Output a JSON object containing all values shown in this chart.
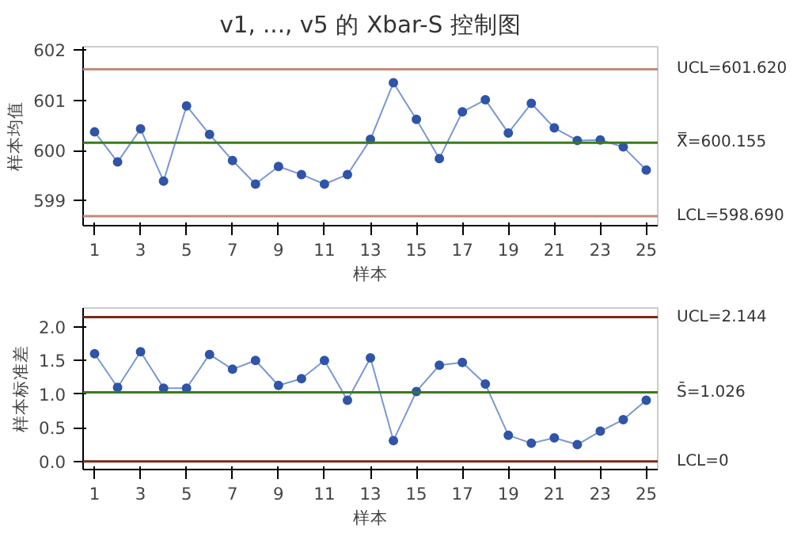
{
  "chart_data": [
    {
      "type": "line",
      "title": "v1, ..., v5 的 Xbar-S 控制图",
      "xlabel": "样本",
      "ylabel": "样本均值",
      "x": [
        1,
        2,
        3,
        4,
        5,
        6,
        7,
        8,
        9,
        10,
        11,
        12,
        13,
        14,
        15,
        16,
        17,
        18,
        19,
        20,
        21,
        22,
        23,
        24,
        25
      ],
      "series": [
        {
          "color": "#2f54a8",
          "values": [
            600.37,
            599.77,
            600.43,
            599.39,
            600.89,
            600.32,
            599.8,
            599.33,
            599.68,
            599.52,
            599.33,
            599.52,
            600.22,
            601.35,
            600.62,
            599.84,
            600.77,
            601.01,
            600.35,
            600.94,
            600.45,
            600.2,
            600.21,
            600.07,
            599.61
          ]
        }
      ],
      "xlim": [
        0.5,
        25.5
      ],
      "xticks": [
        1,
        3,
        5,
        7,
        9,
        11,
        13,
        15,
        17,
        19,
        21,
        23,
        25
      ],
      "ylim": [
        598.5,
        602.07
      ],
      "yticks": [
        599,
        600,
        601,
        602
      ],
      "marker": "circle",
      "line_style": "solid",
      "grid": false,
      "ref_lines": [
        {
          "axis": "y",
          "value": 601.62,
          "label": "UCL=601.620",
          "color": "#c48a78"
        },
        {
          "axis": "y",
          "value": 600.155,
          "label": "X̿=600.155",
          "color": "#3a7a1e"
        },
        {
          "axis": "y",
          "value": 598.69,
          "label": "LCL=598.690",
          "color": "#c48a78"
        }
      ]
    },
    {
      "type": "line",
      "xlabel": "样本",
      "ylabel": "样本标准差",
      "x": [
        1,
        2,
        3,
        4,
        5,
        6,
        7,
        8,
        9,
        10,
        11,
        12,
        13,
        14,
        15,
        16,
        17,
        18,
        19,
        20,
        21,
        22,
        23,
        24,
        25
      ],
      "series": [
        {
          "color": "#2f54a8",
          "values": [
            1.6,
            1.1,
            1.63,
            1.09,
            1.09,
            1.59,
            1.37,
            1.5,
            1.13,
            1.23,
            1.5,
            0.91,
            1.54,
            0.31,
            1.04,
            1.43,
            1.47,
            1.15,
            0.39,
            0.27,
            0.35,
            0.25,
            0.45,
            0.62,
            0.91
          ]
        }
      ],
      "xlim": [
        0.5,
        25.5
      ],
      "xticks": [
        1,
        3,
        5,
        7,
        9,
        11,
        13,
        15,
        17,
        19,
        21,
        23,
        25
      ],
      "ylim": [
        -0.12,
        2.28
      ],
      "yticks": [
        {
          "value": 0,
          "label": "0.0"
        },
        {
          "value": 0.5,
          "label": "0.5"
        },
        {
          "value": 1,
          "label": "1.0"
        },
        {
          "value": 1.5,
          "label": "1.5"
        },
        {
          "value": 2,
          "label": "2.0"
        }
      ],
      "marker": "circle",
      "line_style": "solid",
      "grid": false,
      "ref_lines": [
        {
          "axis": "y",
          "value": 2.144,
          "label": "UCL=2.144",
          "color": "#7a2a1a"
        },
        {
          "axis": "y",
          "value": 1.026,
          "label": "S̄=1.026",
          "color": "#3a7a1e"
        },
        {
          "axis": "y",
          "value": 0,
          "label": "LCL=0",
          "color": "#7a2a1a"
        }
      ]
    }
  ]
}
